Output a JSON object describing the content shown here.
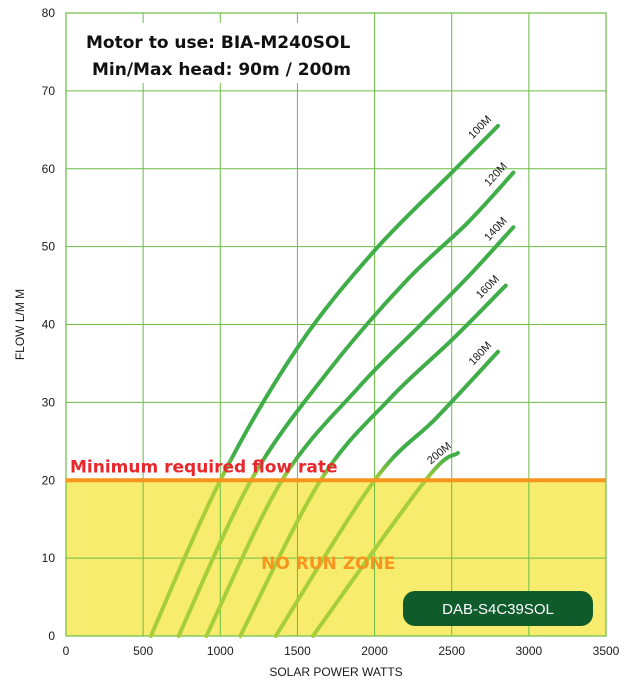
{
  "chart_data": {
    "type": "line",
    "title_lines": [
      "Motor to use: BIA-M240SOL",
      "Min/Max head: 90m / 200m"
    ],
    "xlabel": "SOLAR POWER WATTS",
    "ylabel": "FLOW L/M M",
    "xlim": [
      0,
      3500
    ],
    "ylim": [
      0,
      80
    ],
    "x_ticks": [
      0,
      500,
      1000,
      1500,
      2000,
      2500,
      3000,
      3500
    ],
    "y_ticks": [
      0,
      10,
      20,
      30,
      40,
      50,
      60,
      70,
      80
    ],
    "x_tick_labels": [
      "0",
      "500",
      "1000",
      "1500",
      "2000",
      "2500",
      "3000",
      "3500"
    ],
    "y_tick_labels": [
      "0",
      "10",
      "20",
      "30",
      "40",
      "50",
      "60",
      "70",
      "80"
    ],
    "grid": true,
    "min_flow_line": {
      "y": 20,
      "label": "Minimum required flow rate",
      "color": "#f7941d",
      "label_color": "#e8262c"
    },
    "no_run_zone": {
      "y_max": 20,
      "label": "NO RUN ZONE",
      "fill": "#f7ec6e",
      "label_color": "#f7941d"
    },
    "model_badge": {
      "text": "DAB-S4C39SOL",
      "fill": "#0f5b2b"
    },
    "colors": {
      "grid": "#6cbd45",
      "curve": "#3fae49",
      "curve_low": "#a6ce39"
    },
    "series": [
      {
        "name": "100M",
        "points": [
          [
            550,
            0
          ],
          [
            1000,
            20
          ],
          [
            1500,
            37
          ],
          [
            2000,
            49.5
          ],
          [
            2500,
            59.5
          ],
          [
            2800,
            65.5
          ]
        ]
      },
      {
        "name": "120M",
        "points": [
          [
            730,
            0
          ],
          [
            1200,
            20
          ],
          [
            1700,
            34
          ],
          [
            2200,
            45.5
          ],
          [
            2600,
            53
          ],
          [
            2900,
            59.5
          ]
        ]
      },
      {
        "name": "140M",
        "points": [
          [
            910,
            0
          ],
          [
            1400,
            20
          ],
          [
            1900,
            32
          ],
          [
            2300,
            40
          ],
          [
            2600,
            46
          ],
          [
            2900,
            52.5
          ]
        ]
      },
      {
        "name": "160M",
        "points": [
          [
            1130,
            0
          ],
          [
            1650,
            20
          ],
          [
            2100,
            30.5
          ],
          [
            2500,
            38
          ],
          [
            2850,
            45
          ]
        ]
      },
      {
        "name": "180M",
        "points": [
          [
            1360,
            0
          ],
          [
            2000,
            20
          ],
          [
            2400,
            28
          ],
          [
            2800,
            36.5
          ]
        ]
      },
      {
        "name": "200M",
        "points": [
          [
            1600,
            0
          ],
          [
            2330,
            20
          ],
          [
            2540,
            23.5
          ]
        ]
      }
    ]
  }
}
